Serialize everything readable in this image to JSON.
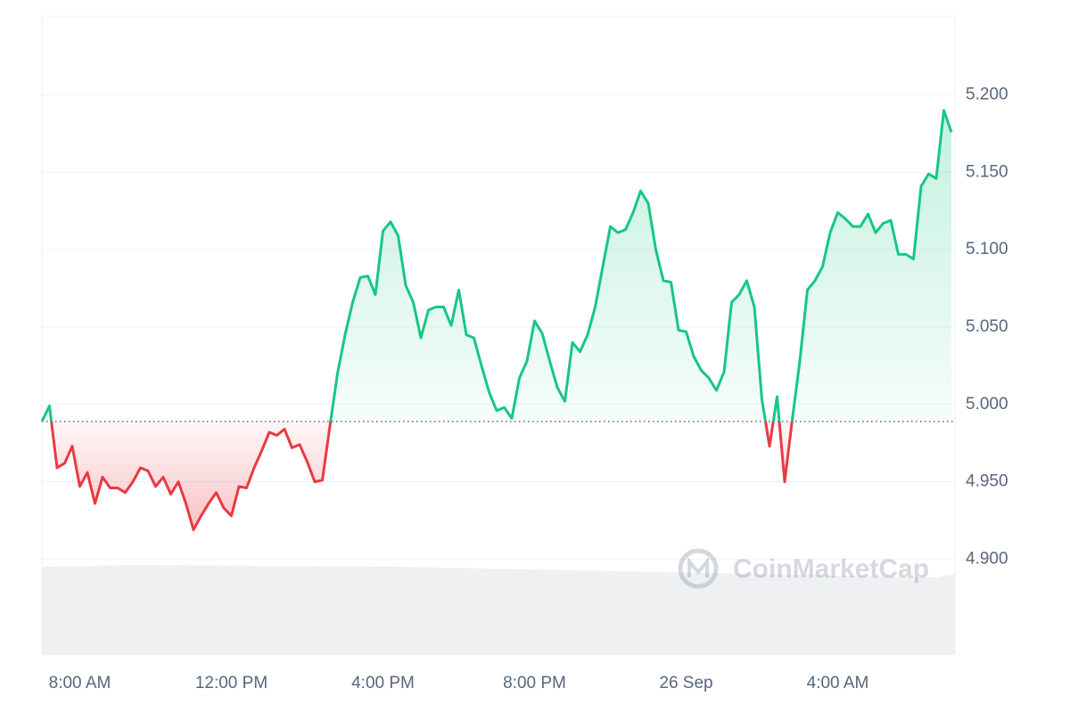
{
  "chart_data": {
    "type": "baseline-line",
    "categories": [
      null,
      null,
      null,
      null,
      null,
      "8:00 AM",
      null,
      null,
      null,
      null,
      null,
      null,
      null,
      null,
      null,
      null,
      null,
      null,
      null,
      null,
      null,
      null,
      null,
      null,
      null,
      "12:00 PM",
      null,
      null,
      null,
      null,
      null,
      null,
      null,
      null,
      null,
      null,
      null,
      null,
      null,
      null,
      null,
      null,
      null,
      null,
      null,
      "4:00 PM",
      null,
      null,
      null,
      null,
      null,
      null,
      null,
      null,
      null,
      null,
      null,
      null,
      null,
      null,
      null,
      null,
      null,
      null,
      null,
      "8:00 PM",
      null,
      null,
      null,
      null,
      null,
      null,
      null,
      null,
      null,
      null,
      null,
      null,
      null,
      null,
      null,
      null,
      null,
      null,
      null,
      "26 Sep",
      null,
      null,
      null,
      null,
      null,
      null,
      null,
      null,
      null,
      null,
      null,
      null,
      null,
      null,
      null,
      null,
      null,
      null,
      null,
      "4:00 AM",
      null,
      null,
      null,
      null,
      null,
      null,
      null,
      null,
      null,
      null,
      null,
      null,
      null,
      null,
      null
    ],
    "values": [
      4.989,
      4.999,
      4.959,
      4.962,
      4.973,
      4.947,
      4.956,
      4.936,
      4.953,
      4.946,
      4.946,
      4.943,
      4.95,
      4.959,
      4.957,
      4.947,
      4.953,
      4.942,
      4.95,
      4.936,
      4.919,
      4.928,
      4.936,
      4.943,
      4.933,
      4.928,
      4.947,
      4.946,
      4.959,
      4.97,
      4.982,
      4.98,
      4.984,
      4.972,
      4.974,
      4.963,
      4.95,
      4.951,
      4.986,
      5.02,
      5.045,
      5.066,
      5.082,
      5.083,
      5.071,
      5.112,
      5.118,
      5.109,
      5.077,
      5.066,
      5.043,
      5.061,
      5.063,
      5.063,
      5.051,
      5.074,
      5.045,
      5.043,
      5.025,
      5.008,
      4.996,
      4.998,
      4.991,
      5.017,
      5.028,
      5.054,
      5.046,
      5.028,
      5.011,
      5.002,
      5.04,
      5.034,
      5.045,
      5.063,
      5.089,
      5.115,
      5.111,
      5.113,
      5.124,
      5.138,
      5.13,
      5.1,
      5.08,
      5.079,
      5.048,
      5.047,
      5.031,
      5.022,
      5.017,
      5.009,
      5.021,
      5.066,
      5.071,
      5.08,
      5.063,
      5.003,
      4.973,
      5.005,
      4.95,
      4.99,
      5.028,
      5.074,
      5.08,
      5.089,
      5.111,
      5.124,
      5.12,
      5.115,
      5.115,
      5.123,
      5.111,
      5.117,
      5.119,
      5.097,
      5.097,
      5.094,
      5.141,
      5.149,
      5.146,
      5.19,
      5.176
    ],
    "reference": 4.989,
    "color_up": "#16c784",
    "color_down": "#ea3943",
    "ylim": [
      4.838,
      5.251
    ],
    "yticks": [
      {
        "value": 4.9,
        "label": "4.900"
      },
      {
        "value": 4.95,
        "label": "4.950"
      },
      {
        "value": 5.0,
        "label": "5.000"
      },
      {
        "value": 5.05,
        "label": "5.050"
      },
      {
        "value": 5.1,
        "label": "5.100"
      },
      {
        "value": 5.15,
        "label": "5.150"
      },
      {
        "value": 5.2,
        "label": "5.200"
      }
    ],
    "grid": true,
    "watermark": "CoinMarketCap"
  }
}
